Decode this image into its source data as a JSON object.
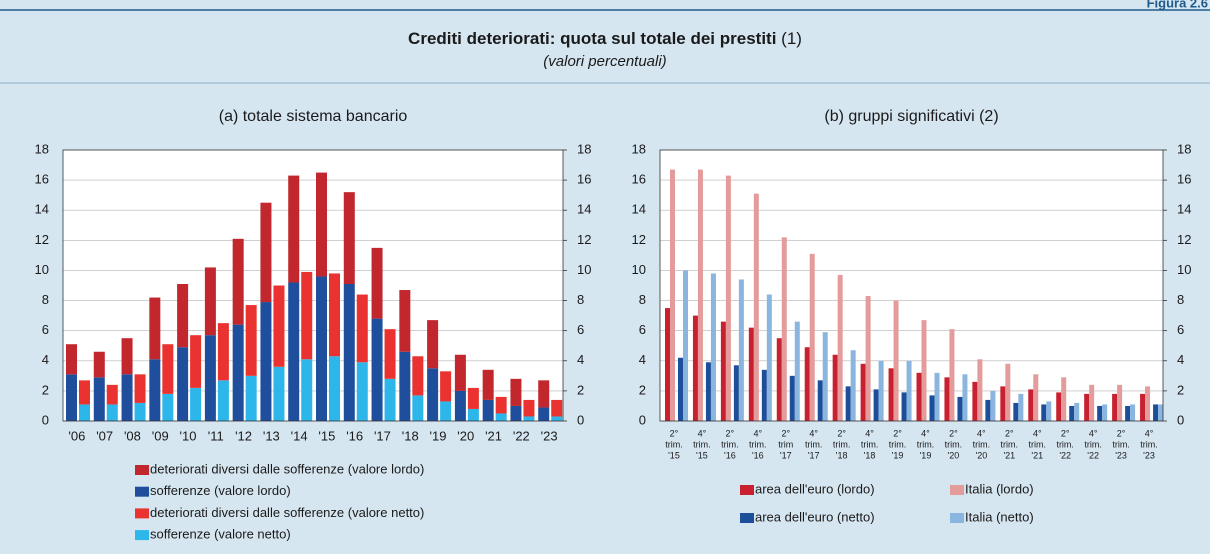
{
  "header": {
    "figure": "Figura 2.6",
    "title": "Crediti deteriorati: quota sul totale dei prestiti",
    "note": "(1)",
    "subtitle": "(valori percentuali)"
  },
  "chart_data": [
    {
      "type": "stacked_bar",
      "title": "(a) totale sistema bancario",
      "categories": [
        "'06",
        "'07",
        "'08",
        "'09",
        "'10",
        "'11",
        "'12",
        "'13",
        "'14",
        "'15",
        "'16",
        "'17",
        "'18",
        "'19",
        "'20",
        "'21",
        "'22",
        "'23"
      ],
      "series": [
        {
          "name": "deteriorati diversi dalle sofferenze (valore lordo)",
          "color": "#c1272d",
          "stack": "lordo",
          "values": [
            2.0,
            1.7,
            2.4,
            4.1,
            4.2,
            4.5,
            5.7,
            6.6,
            7.1,
            6.9,
            6.1,
            4.7,
            4.1,
            3.2,
            2.4,
            2.0,
            1.8,
            1.8
          ]
        },
        {
          "name": "sofferenze (valore lordo)",
          "color": "#1f4e9c",
          "stack": "lordo",
          "values": [
            3.1,
            2.9,
            3.1,
            4.1,
            4.9,
            5.7,
            6.4,
            7.9,
            9.2,
            9.6,
            9.1,
            6.8,
            4.6,
            3.5,
            2.0,
            1.4,
            1.0,
            0.9
          ]
        },
        {
          "name": "deteriorati diversi dalle sofferenze (valore netto)",
          "color": "#ea3330",
          "stack": "netto",
          "values": [
            1.6,
            1.3,
            1.9,
            3.3,
            3.5,
            3.8,
            4.7,
            5.4,
            5.8,
            5.5,
            4.5,
            3.3,
            2.6,
            2.0,
            1.4,
            1.1,
            1.1,
            1.1
          ]
        },
        {
          "name": "sofferenze (valore netto)",
          "color": "#2db6e9",
          "stack": "netto",
          "values": [
            1.1,
            1.1,
            1.2,
            1.8,
            2.2,
            2.7,
            3.0,
            3.6,
            4.1,
            4.3,
            3.9,
            2.8,
            1.7,
            1.3,
            0.8,
            0.5,
            0.3,
            0.3
          ]
        }
      ],
      "ylim": [
        0,
        18
      ],
      "yticks": [
        0,
        2,
        4,
        6,
        8,
        10,
        12,
        14,
        16,
        18
      ],
      "y2lim": [
        0,
        18
      ],
      "y2ticks": [
        0,
        2,
        4,
        6,
        8,
        10,
        12,
        14,
        16,
        18
      ],
      "grid": true
    },
    {
      "type": "grouped_bar",
      "title": "(b) gruppi significativi (2)",
      "categories": [
        [
          "2°",
          "trim.",
          "'15"
        ],
        [
          "4°",
          "trim.",
          "'15"
        ],
        [
          "2°",
          "trim.",
          "'16"
        ],
        [
          "4°",
          "trim.",
          "'16"
        ],
        [
          "2°",
          "trim",
          "'17"
        ],
        [
          "4°",
          "trim.",
          "'17"
        ],
        [
          "2°",
          "trim.",
          "'18"
        ],
        [
          "4°",
          "trim.",
          "'18"
        ],
        [
          "2°",
          "trim.",
          "'19"
        ],
        [
          "4°",
          "trim.",
          "'19"
        ],
        [
          "2°",
          "trim.",
          "'20"
        ],
        [
          "4°",
          "trim.",
          "'20"
        ],
        [
          "2°",
          "trim.",
          "'21"
        ],
        [
          "4°",
          "trim.",
          "'21"
        ],
        [
          "2°",
          "trim.",
          "'22"
        ],
        [
          "4°",
          "trim.",
          "'22"
        ],
        [
          "2°",
          "trim.",
          "'23"
        ],
        [
          "4°",
          "trim.",
          "'23"
        ]
      ],
      "series": [
        {
          "name": "area dell'euro (lordo)",
          "color": "#c8202f",
          "values": [
            7.5,
            7.0,
            6.6,
            6.2,
            5.5,
            4.9,
            4.4,
            3.8,
            3.5,
            3.2,
            2.9,
            2.6,
            2.3,
            2.1,
            1.9,
            1.8,
            1.8,
            1.8
          ]
        },
        {
          "name": "Italia (lordo)",
          "color": "#e49b9b",
          "values": [
            16.7,
            16.7,
            16.3,
            15.1,
            12.2,
            11.1,
            9.7,
            8.3,
            8.0,
            6.7,
            6.1,
            4.1,
            3.8,
            3.1,
            2.9,
            2.4,
            2.4,
            2.3
          ]
        },
        {
          "name": "area dell'euro (netto)",
          "color": "#1d4e9a",
          "values": [
            4.2,
            3.9,
            3.7,
            3.4,
            3.0,
            2.7,
            2.3,
            2.1,
            1.9,
            1.7,
            1.6,
            1.4,
            1.2,
            1.1,
            1.0,
            1.0,
            1.0,
            1.1
          ]
        },
        {
          "name": "Italia (netto)",
          "color": "#8ab5df",
          "values": [
            10.0,
            9.8,
            9.4,
            8.4,
            6.6,
            5.9,
            4.7,
            4.0,
            4.0,
            3.2,
            3.1,
            2.0,
            1.8,
            1.3,
            1.2,
            1.1,
            1.1,
            1.1
          ]
        }
      ],
      "ylim": [
        0,
        18
      ],
      "yticks": [
        0,
        2,
        4,
        6,
        8,
        10,
        12,
        14,
        16,
        18
      ],
      "y2lim": [
        0,
        18
      ],
      "y2ticks": [
        0,
        2,
        4,
        6,
        8,
        10,
        12,
        14,
        16,
        18
      ],
      "grid": true
    }
  ]
}
